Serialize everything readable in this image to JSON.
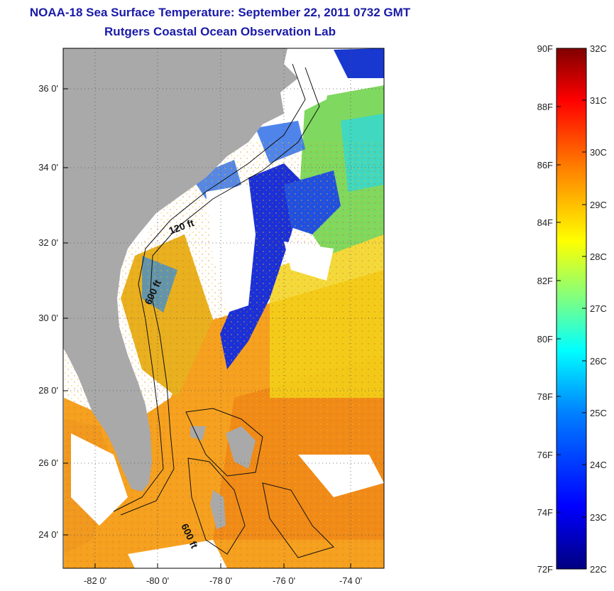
{
  "titles": {
    "line1": "NOAA-18 Sea Surface Temperature:  September 22, 2011 0732 GMT",
    "line2": "Rutgers Coastal Ocean Observation Lab"
  },
  "map": {
    "lat_range": [
      23.0,
      37.0
    ],
    "lon_range": [
      -83.0,
      -73.0
    ],
    "lat_ticks": [
      "24 0'",
      "26 0'",
      "28 0'",
      "30 0'",
      "32 0'",
      "34 0'",
      "36 0'"
    ],
    "lon_ticks": [
      "-82 0'",
      "-80 0'",
      "-78 0'",
      "-76 0'",
      "-74 0'"
    ],
    "land_color": "#a9a9a9",
    "cloud_color": "#ffffff",
    "contour_labels": [
      "120 ft",
      "600 ft",
      "600 ft"
    ],
    "grid": "dotted"
  },
  "colorbar": {
    "fahrenheit": [
      "90F",
      "88F",
      "86F",
      "84F",
      "82F",
      "80F",
      "78F",
      "76F",
      "74F",
      "72F"
    ],
    "celsius": [
      "32C",
      "31C",
      "30C",
      "29C",
      "28C",
      "27C",
      "26C",
      "25C",
      "24C",
      "23C",
      "22C"
    ],
    "colors": [
      "#000080",
      "#0000ff",
      "#0080ff",
      "#00ffff",
      "#80ff80",
      "#ffff00",
      "#ff8000",
      "#ff0000",
      "#800000"
    ]
  }
}
